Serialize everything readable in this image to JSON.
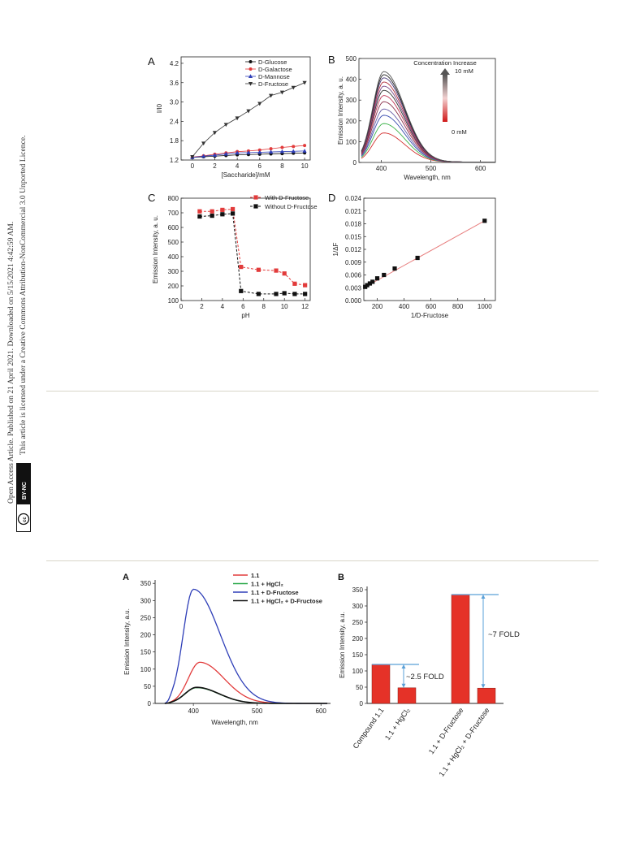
{
  "sidebar": {
    "line1": "Open Access Article. Published on 21 April 2021. Downloaded on 5/15/2021 4:42:59 AM.",
    "line2": "This article is licensed under a Creative Commons Attribution-NonCommercial 3.0 Unported Licence.",
    "badge_cc": "cc",
    "badge_by": "BY-NC"
  },
  "colors": {
    "black": "#111111",
    "red": "#e23b3b",
    "blue": "#2f3fb8",
    "green": "#2aa84a",
    "navy": "#1f2a8a",
    "bar": "#e53228",
    "arrow": "#5aa0d8",
    "fit": "#e88080"
  },
  "chart_data": [
    {
      "id": "A_top",
      "type": "line",
      "panel_label": "A",
      "xlabel": "[Saccharide]/mM",
      "ylabel": "I/I0",
      "xlim": [
        -1,
        10.5
      ],
      "ylim": [
        1.2,
        4.4
      ],
      "xticks": [
        "0",
        "2",
        "4",
        "6",
        "8",
        "10"
      ],
      "yticks": [
        "1.2",
        "1.8",
        "2.4",
        "3.0",
        "3.6",
        "4.2"
      ],
      "x": [
        0,
        1,
        2,
        3,
        4,
        5,
        6,
        7,
        8,
        9,
        10
      ],
      "series": [
        {
          "name": "D-Glucose",
          "marker": "circle",
          "color": "#111111",
          "values": [
            1.28,
            1.3,
            1.32,
            1.34,
            1.36,
            1.37,
            1.38,
            1.39,
            1.4,
            1.41,
            1.42
          ]
        },
        {
          "name": "D-Galactose",
          "marker": "circle",
          "color": "#e23b3b",
          "values": [
            1.29,
            1.33,
            1.38,
            1.42,
            1.46,
            1.48,
            1.51,
            1.55,
            1.59,
            1.62,
            1.65
          ]
        },
        {
          "name": "D-Mannose",
          "marker": "triangle",
          "color": "#2f3fb8",
          "values": [
            1.28,
            1.32,
            1.35,
            1.39,
            1.42,
            1.43,
            1.44,
            1.45,
            1.46,
            1.47,
            1.48
          ]
        },
        {
          "name": "D-Fructose",
          "marker": "triangle-down",
          "color": "#333333",
          "values": [
            1.3,
            1.72,
            2.05,
            2.3,
            2.5,
            2.72,
            2.95,
            3.2,
            3.3,
            3.45,
            3.6
          ]
        }
      ]
    },
    {
      "id": "B_top",
      "type": "line",
      "panel_label": "B",
      "xlabel": "Wavelength, nm",
      "ylabel": "Emission Intensity, a. u.",
      "xlim": [
        355,
        630
      ],
      "ylim": [
        0,
        500
      ],
      "xticks": [
        "400",
        "500",
        "600"
      ],
      "yticks": [
        "0",
        "100",
        "200",
        "300",
        "400",
        "500"
      ],
      "peak_wavelength": 405,
      "series_peaks": [
        140,
        185,
        225,
        255,
        290,
        320,
        345,
        365,
        385,
        405,
        420,
        435
      ],
      "colorbar_top": "10 mM",
      "colorbar_bottom": "0 mM",
      "annotation": "Concentration Increase"
    },
    {
      "id": "C_top",
      "type": "line",
      "panel_label": "C",
      "xlabel": "pH",
      "ylabel": "Emission Intensity, a. u.",
      "xlim": [
        0,
        12.5
      ],
      "ylim": [
        100,
        800
      ],
      "xticks": [
        "0",
        "2",
        "4",
        "6",
        "8",
        "10",
        "12"
      ],
      "yticks": [
        "100",
        "200",
        "300",
        "400",
        "500",
        "600",
        "700",
        "800"
      ],
      "series": [
        {
          "name": "With D-Fructose",
          "color": "#e23b3b",
          "x": [
            1.8,
            3,
            4,
            5,
            5.8,
            7.5,
            9.2,
            10,
            11,
            12
          ],
          "values": [
            710,
            710,
            720,
            725,
            330,
            310,
            305,
            285,
            215,
            205
          ]
        },
        {
          "name": "Without D-Fructose",
          "color": "#111111",
          "x": [
            1.8,
            3,
            4,
            5,
            5.8,
            7.5,
            9.2,
            10,
            11,
            12
          ],
          "values": [
            675,
            680,
            690,
            695,
            165,
            145,
            145,
            150,
            145,
            145
          ]
        }
      ]
    },
    {
      "id": "D_top",
      "type": "scatter",
      "panel_label": "D",
      "xlabel": "1/D-Fructose",
      "ylabel": "1/ΔF",
      "xlim": [
        100,
        1080
      ],
      "ylim": [
        0,
        0.024
      ],
      "xticks": [
        "200",
        "400",
        "600",
        "800",
        "1000"
      ],
      "yticks": [
        "0.000",
        "0.003",
        "0.006",
        "0.009",
        "0.012",
        "0.015",
        "0.018",
        "0.021",
        "0.024"
      ],
      "x": [
        110,
        125,
        145,
        165,
        200,
        250,
        330,
        500,
        1000
      ],
      "values": [
        0.0032,
        0.0036,
        0.004,
        0.0044,
        0.0052,
        0.006,
        0.0075,
        0.01,
        0.0187
      ],
      "fit": {
        "x": [
          100,
          1000
        ],
        "y": [
          0.003,
          0.0187
        ]
      }
    },
    {
      "id": "A_bottom",
      "type": "line",
      "panel_label": "A",
      "xlabel": "Wavelength, nm",
      "ylabel": "Emission Intensity, a.u.",
      "xlim": [
        340,
        615
      ],
      "ylim": [
        0,
        360
      ],
      "xticks": [
        "400",
        "500",
        "600"
      ],
      "yticks": [
        "0",
        "50",
        "100",
        "150",
        "200",
        "250",
        "300",
        "350"
      ],
      "series": [
        {
          "name": "1.1",
          "color": "#e23b3b",
          "peak": 120
        },
        {
          "name": "1.1 + HgCl₂",
          "color": "#2aa84a",
          "peak": 46
        },
        {
          "name": "1.1 + D-Fructose",
          "color": "#2f3fb8",
          "peak": 333
        },
        {
          "name": "1.1 + HgCl₂ + D-Fructose",
          "color": "#111111",
          "peak": 47
        }
      ]
    },
    {
      "id": "B_bottom",
      "type": "bar",
      "panel_label": "B",
      "ylabel": "Emission Intensity, a.u.",
      "ylim": [
        0,
        360
      ],
      "yticks": [
        "0",
        "50",
        "100",
        "150",
        "200",
        "250",
        "300",
        "350"
      ],
      "categories": [
        "Compound 1.1",
        "1.1 + HgCl₂",
        "1.1 + D-Fructose",
        "1.1 + HgCl₂ + D-Fructose"
      ],
      "values": [
        120,
        48,
        335,
        47
      ],
      "annotations": [
        "~2.5 FOLD",
        "~7 FOLD"
      ]
    }
  ]
}
